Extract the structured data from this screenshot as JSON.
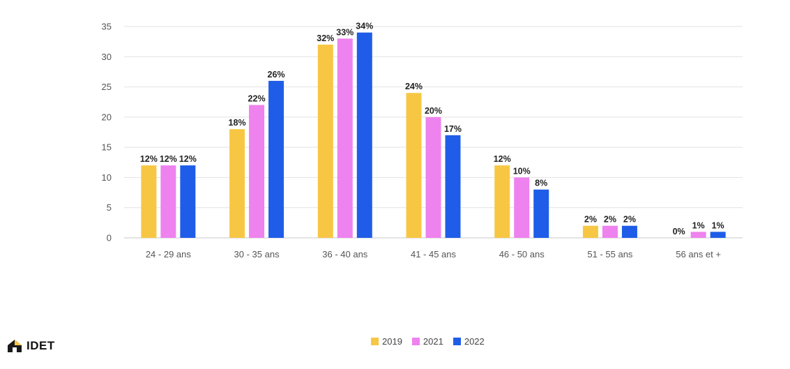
{
  "chart_data": {
    "type": "bar",
    "title": "",
    "xlabel": "",
    "ylabel": "",
    "categories": [
      "24 - 29 ans",
      "30 - 35 ans",
      "36 - 40 ans",
      "41 - 45 ans",
      "46 - 50 ans",
      "51 - 55 ans",
      "56 ans et +"
    ],
    "ylim": [
      0,
      35
    ],
    "yticks": [
      0,
      5,
      10,
      15,
      20,
      25,
      30,
      35
    ],
    "grid": true,
    "legend_position": "bottom",
    "series": [
      {
        "name": "2019",
        "color": "#F7C744",
        "values": [
          12,
          18,
          32,
          24,
          12,
          2,
          0
        ],
        "labels": [
          "12%",
          "18%",
          "32%",
          "24%",
          "12%",
          "2%",
          "0%"
        ]
      },
      {
        "name": "2021",
        "color": "#EE82EE",
        "values": [
          12,
          22,
          33,
          20,
          10,
          2,
          1
        ],
        "labels": [
          "12%",
          "22%",
          "33%",
          "20%",
          "10%",
          "2%",
          "1%"
        ]
      },
      {
        "name": "2022",
        "color": "#1F5DE8",
        "values": [
          12,
          26,
          34,
          17,
          8,
          2,
          1
        ],
        "labels": [
          "12%",
          "26%",
          "34%",
          "17%",
          "8%",
          "2%",
          "1%"
        ]
      }
    ]
  },
  "logo": {
    "text": "IDET",
    "icon": "house-logo-icon"
  }
}
